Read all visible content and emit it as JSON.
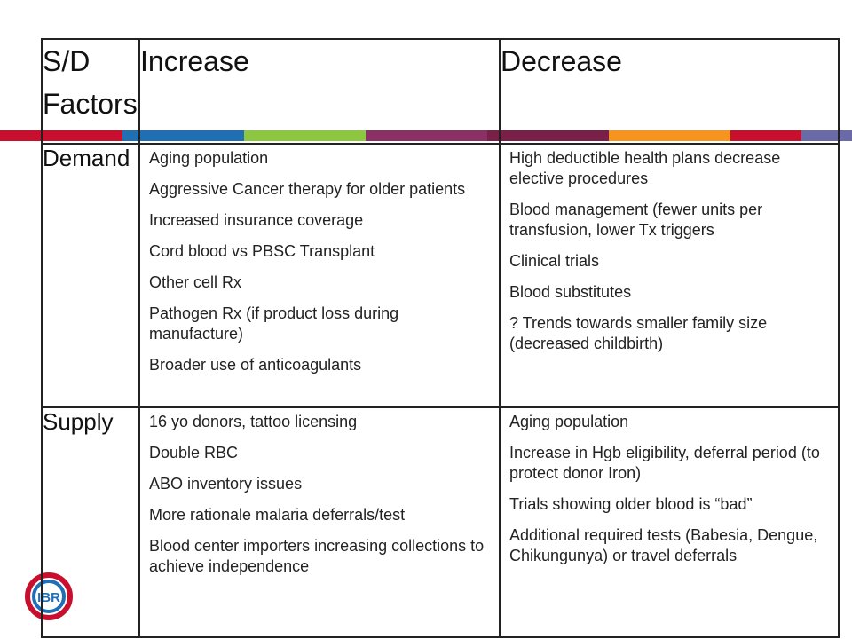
{
  "brand": {
    "stripe_colors": [
      "#c8102e",
      "#1f6fb5",
      "#8dc63f",
      "#8b2f64",
      "#7a2048",
      "#f7941d",
      "#c8102e",
      "#6a6aa8"
    ],
    "logo_text": "IBR"
  },
  "table": {
    "headers": [
      "S/D",
      "Factors",
      "Increase",
      "Decrease"
    ],
    "rows": [
      {
        "label": "Demand",
        "increase": [
          "Aging population",
          "Aggressive Cancer therapy for older patients",
          "Increased insurance coverage",
          "Cord blood vs PBSC Transplant",
          "Other cell Rx",
          "Pathogen Rx (if product loss during manufacture)",
          "Broader use of anticoagulants"
        ],
        "decrease": [
          "High deductible health plans decrease elective procedures",
          "Blood management (fewer units per transfusion, lower Tx triggers",
          "Clinical trials",
          "Blood substitutes",
          "? Trends towards smaller family size (decreased childbirth)"
        ]
      },
      {
        "label": "Supply",
        "increase": [
          "16 yo donors, tattoo licensing",
          "Double RBC",
          "ABO inventory issues",
          "More rationale malaria deferrals/test",
          "Blood center importers increasing collections to achieve independence"
        ],
        "decrease": [
          "Aging population",
          "Increase in Hgb eligibility, deferral period (to protect donor Iron)",
          "Trials showing older blood is “bad”",
          "Additional required tests (Babesia, Dengue, Chikungunya) or travel deferrals"
        ]
      }
    ]
  }
}
